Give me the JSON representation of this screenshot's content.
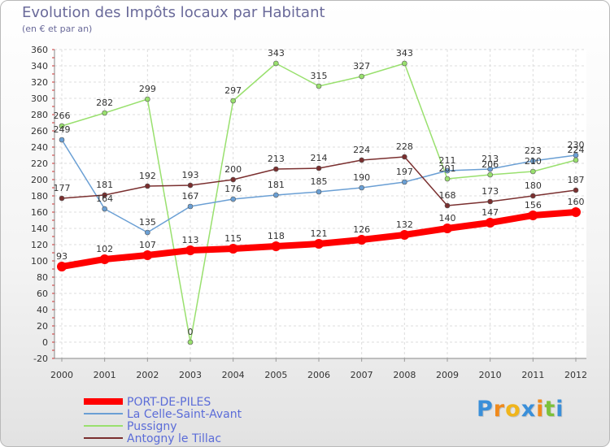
{
  "chart_data": {
    "type": "line",
    "title": "Evolution des Impôts locaux par Habitant",
    "subtitle": "(en € et par an)",
    "xlabel": "",
    "ylabel": "",
    "x": [
      "2000",
      "2001",
      "2002",
      "2003",
      "2004",
      "2005",
      "2006",
      "2007",
      "2008",
      "2009",
      "2010",
      "2011",
      "2012"
    ],
    "ylim": [
      -20,
      360
    ],
    "yticks": [
      "-20",
      "0",
      "20",
      "40",
      "60",
      "80",
      "100",
      "120",
      "140",
      "160",
      "180",
      "200",
      "220",
      "240",
      "260",
      "280",
      "300",
      "320",
      "340",
      "360"
    ],
    "grid": true,
    "legend_position": "bottom-left",
    "series": [
      {
        "name": "PORT-DE-PILES",
        "color": "#ff0000",
        "values": [
          93,
          102,
          107,
          113,
          115,
          118,
          121,
          126,
          132,
          140,
          147,
          156,
          160
        ],
        "labels": [
          "93",
          "102",
          "107",
          "113",
          "115",
          "118",
          "121",
          "126",
          "132",
          "140",
          "147",
          "156",
          "160"
        ]
      },
      {
        "name": "La Celle-Saint-Avant",
        "color": "#6a9fd4",
        "values": [
          249,
          164,
          135,
          167,
          176,
          181,
          185,
          190,
          197,
          211,
          213,
          223,
          230
        ],
        "labels": [
          "249",
          "164",
          "135",
          "167",
          "176",
          "181",
          "185",
          "190",
          "197",
          "211",
          "213",
          "223",
          "230"
        ]
      },
      {
        "name": "Pussigny",
        "color": "#99e06e",
        "values": [
          266,
          282,
          299,
          0,
          297,
          343,
          315,
          327,
          343,
          201,
          206,
          210,
          224
        ],
        "labels": [
          "266",
          "282",
          "299",
          "0",
          "297",
          "343",
          "315",
          "327",
          "343",
          "201",
          "206",
          "210",
          "224"
        ]
      },
      {
        "name": "Antogny le Tillac",
        "color": "#7a2f2f",
        "values": [
          177,
          181,
          192,
          193,
          200,
          213,
          214,
          224,
          228,
          168,
          173,
          180,
          187
        ],
        "labels": [
          "177",
          "181",
          "192",
          "193",
          "200",
          "213",
          "214",
          "224",
          "228",
          "168",
          "173",
          "180",
          "187"
        ]
      }
    ]
  },
  "logo": {
    "letters": [
      "P",
      "r",
      "o",
      "x",
      "i",
      "t",
      "i"
    ],
    "colors": [
      "#3a8fd9",
      "#f08a1c",
      "#f0b51c",
      "#3a8fd9",
      "#f08a1c",
      "#7cc13a",
      "#3a8fd9"
    ]
  }
}
